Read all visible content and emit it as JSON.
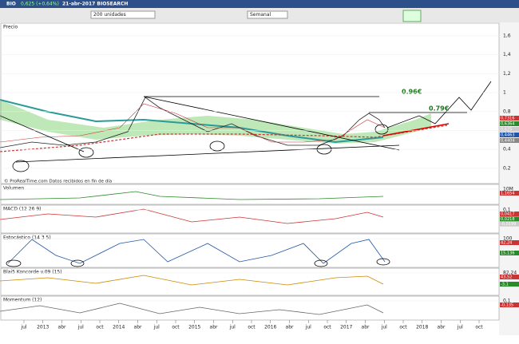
{
  "titlebar": {
    "symbol": "BIO",
    "quote": "0,625 (+0,64%)",
    "info": "21-abr-2017 BIOSEARCH"
  },
  "toolbar": {
    "units": "200 unidades",
    "period": "Semanal"
  },
  "panels": [
    {
      "title": "Precio",
      "axis": [
        "1,6",
        "1,4",
        "1,2",
        "1",
        "0,8",
        "0,6",
        "0,4",
        "0,2"
      ],
      "prices": [
        "0,7316",
        "0,6364",
        "0,625",
        "0,4463",
        "0,4404"
      ]
    },
    {
      "title": "Volumen",
      "axis": [
        "10M"
      ],
      "prices": [
        "1,1654"
      ]
    },
    {
      "title": "MACD (12 26 9)",
      "axis": [
        "0,1"
      ],
      "prices": [
        "0,0417",
        "0,0218",
        "-0,0199"
      ]
    },
    {
      "title": "Estocástico (14 3 5)",
      "axis": [
        "100"
      ],
      "prices": [
        "42,24",
        "15,136"
      ]
    },
    {
      "title": "Blai5 Koncorde v.09 (15)",
      "axis": [
        "82,24"
      ],
      "prices": [
        "43,52",
        "-3,1"
      ]
    },
    {
      "title": "Momentum (12)",
      "axis": [
        "0,1"
      ],
      "prices": [
        "-0,135"
      ]
    }
  ],
  "annotations": [
    "0.96€",
    "0.79€"
  ],
  "credit": "© ProRealTime.com  Datos recibidos en fin de día",
  "xaxis": [
    "jul",
    "2013",
    "abr",
    "jul",
    "oct",
    "2014",
    "abr",
    "jul",
    "oct",
    "2015",
    "abr",
    "jul",
    "oct",
    "2016",
    "abr",
    "jul",
    "oct",
    "2017",
    "abr",
    "jul",
    "oct",
    "2018",
    "abr",
    "jul",
    "oct"
  ]
}
